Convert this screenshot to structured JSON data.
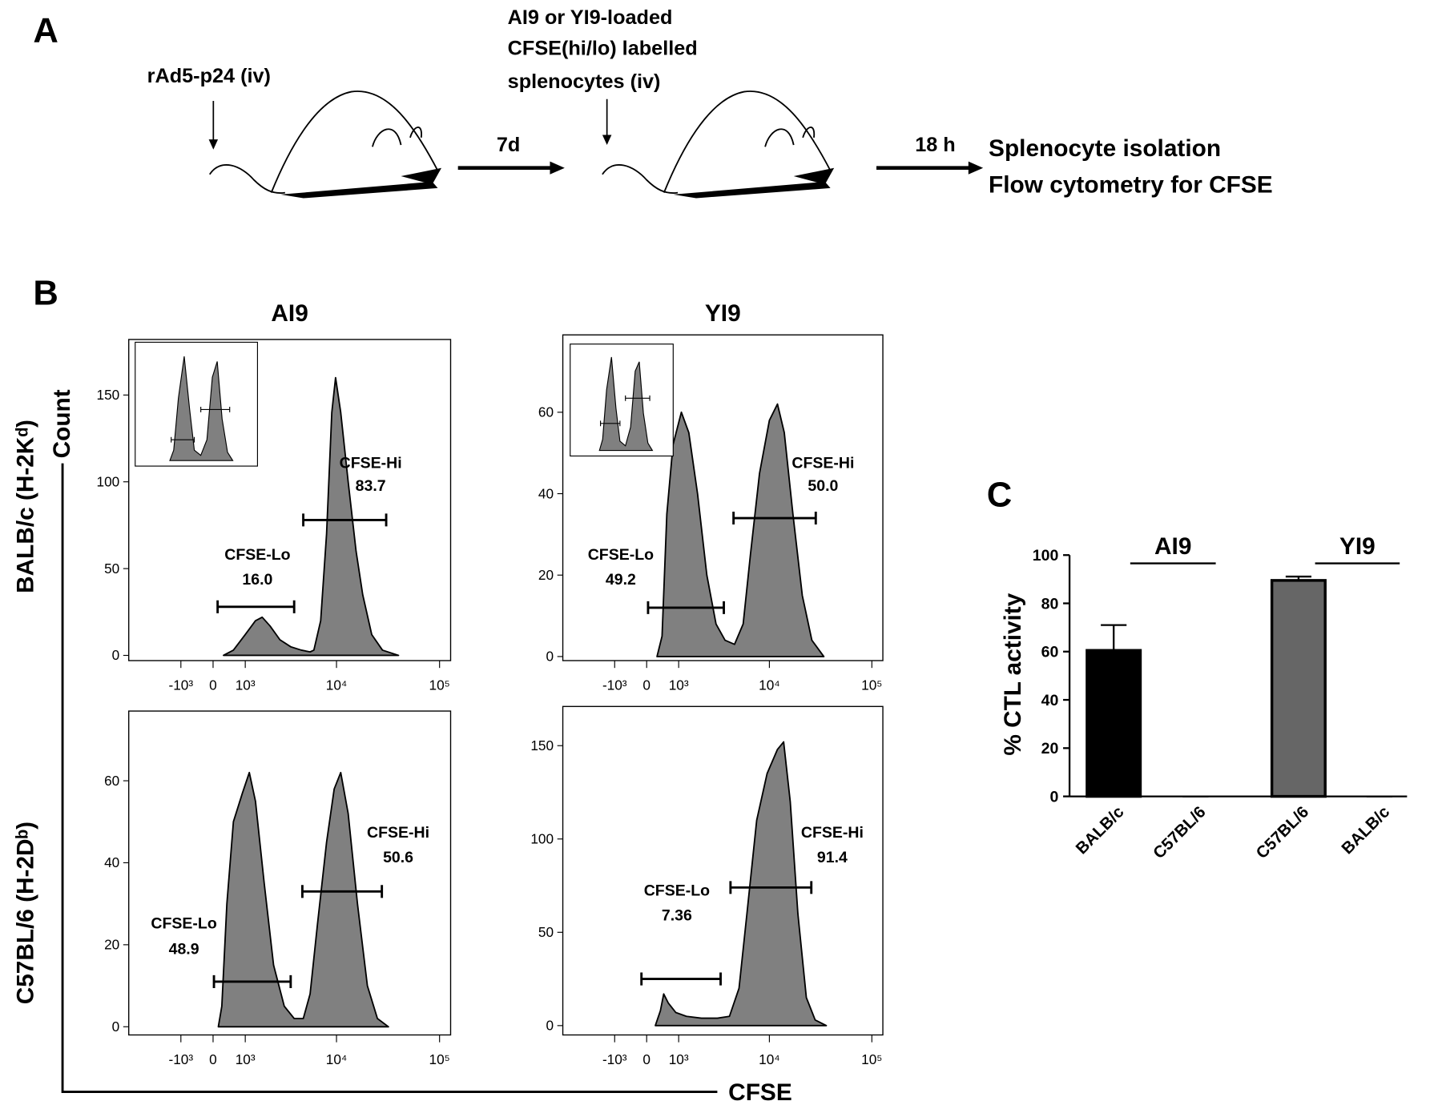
{
  "panel_a": {
    "label": "A",
    "step1": "rAd5-p24 (iv)",
    "interval1": "7d",
    "step2": [
      "AI9 or YI9-loaded",
      "CFSE(hi/lo) labelled",
      "splenocytes (iv)"
    ],
    "interval2": "18 h",
    "result": [
      "Splenocyte isolation",
      "Flow cytometry for CFSE"
    ]
  },
  "panel_b": {
    "label": "B",
    "columns": [
      "AI9",
      "YI9"
    ],
    "rows": [
      "BALB/c (H-2Kᵈ)",
      "C57BL/6 (H-2Dᵇ)"
    ],
    "y_axis_label": "Count",
    "x_axis_label": "CFSE",
    "charts": [
      {
        "type": "area",
        "color": "#808080",
        "x_scale": "biexponential",
        "xlim": [
          -4100,
          128000
        ],
        "ylim": [
          -3,
          182
        ],
        "xticks": [
          {
            "value": -1000,
            "label": "-10³"
          },
          0,
          {
            "value": 1000,
            "label": "10³"
          },
          {
            "value": 10000,
            "label": "10⁴"
          },
          {
            "value": 100000,
            "label": "10⁵"
          }
        ],
        "yticks": [
          0,
          50,
          100,
          150
        ],
        "x": [
          300,
          600,
          1000,
          1400,
          1700,
          2100,
          2700,
          3500,
          4500,
          5500,
          6000,
          7000,
          8000,
          9000,
          9800,
          11000,
          13000,
          15500,
          18000,
          22000,
          28000,
          40000
        ],
        "values": [
          0,
          3,
          12,
          20,
          22,
          17,
          9,
          5,
          3,
          2,
          3,
          20,
          70,
          140,
          160,
          140,
          100,
          60,
          35,
          12,
          3,
          0
        ],
        "gates": [
          {
            "name": "CFSE-Lo",
            "value": 16,
            "value_label": "16.0",
            "range": [
              130,
              3800
            ],
            "level": 28
          },
          {
            "name": "CFSE-Hi",
            "value": 83.7,
            "range": [
              4700,
              30400
            ],
            "level": 78
          }
        ],
        "inset": {
          "xlim": [
            -4100,
            128000
          ],
          "ylim": [
            0,
            110
          ],
          "x": [
            200,
            500,
            900,
            1500,
            2200,
            3000,
            4500,
            6500,
            9000,
            12000,
            16000,
            22000,
            30000
          ],
          "values": [
            0,
            10,
            60,
            100,
            50,
            10,
            5,
            20,
            80,
            95,
            40,
            8,
            0
          ],
          "gates": [
            {
              "range": [
                300,
                3000
              ],
              "level": 20
            },
            {
              "range": [
                4500,
                25000
              ],
              "level": 49
            }
          ]
        }
      },
      {
        "type": "area",
        "color": "#808080",
        "x_scale": "biexponential",
        "xlim": [
          -4100,
          128000
        ],
        "ylim": [
          -1,
          79
        ],
        "xticks": [
          {
            "value": -1000,
            "label": "-10³"
          },
          0,
          {
            "value": 1000,
            "label": "10³"
          },
          {
            "value": 10000,
            "label": "10⁴"
          },
          {
            "value": 100000,
            "label": "10⁵"
          }
        ],
        "yticks": [
          0,
          20,
          40,
          60
        ],
        "x": [
          300,
          450,
          600,
          800,
          1100,
          1400,
          1800,
          2300,
          2900,
          3600,
          4500,
          5500,
          6500,
          8000,
          10000,
          12000,
          14000,
          17000,
          21000,
          26000,
          34000
        ],
        "values": [
          0,
          5,
          35,
          52,
          60,
          55,
          40,
          20,
          8,
          4,
          3,
          8,
          25,
          45,
          58,
          62,
          55,
          35,
          15,
          4,
          0
        ],
        "gates": [
          {
            "name": "CFSE-Lo",
            "value": 49.2,
            "range": [
              40,
              3500
            ],
            "level": 12
          },
          {
            "name": "CFSE-Hi",
            "value": 50,
            "value_label": "50.0",
            "range": [
              4400,
              28400
            ],
            "level": 34
          }
        ],
        "inset": {
          "xlim": [
            -4100,
            128000
          ],
          "ylim": [
            0,
            110
          ],
          "x": [
            200,
            500,
            900,
            1500,
            2200,
            3000,
            4500,
            6500,
            9000,
            12000,
            16000,
            22000,
            30000
          ],
          "values": [
            0,
            12,
            65,
            100,
            45,
            10,
            5,
            25,
            85,
            95,
            40,
            8,
            0
          ],
          "gates": [
            {
              "range": [
                300,
                3000
              ],
              "level": 29
            },
            {
              "range": [
                4500,
                25000
              ],
              "level": 56
            }
          ]
        }
      },
      {
        "type": "area",
        "color": "#808080",
        "x_scale": "biexponential",
        "xlim": [
          -4100,
          128000
        ],
        "ylim": [
          -2,
          77
        ],
        "xticks": [
          {
            "value": -1000,
            "label": "-10³"
          },
          0,
          {
            "value": 1000,
            "label": "10³"
          },
          {
            "value": 10000,
            "label": "10⁴"
          },
          {
            "value": 100000,
            "label": "10⁵"
          }
        ],
        "yticks": [
          0,
          20,
          40,
          60
        ],
        "x": [
          150,
          250,
          400,
          600,
          900,
          1150,
          1400,
          1800,
          2300,
          3000,
          3800,
          4700,
          5500,
          6500,
          8000,
          9500,
          11000,
          13000,
          16000,
          20000,
          25000,
          32000
        ],
        "values": [
          0,
          5,
          30,
          50,
          57,
          62,
          55,
          35,
          15,
          5,
          2,
          2,
          8,
          25,
          45,
          58,
          62,
          52,
          30,
          10,
          2,
          0
        ],
        "gates": [
          {
            "name": "CFSE-Lo",
            "value": 48.9,
            "range": [
              25,
              3500
            ],
            "level": 11
          },
          {
            "name": "CFSE-Hi",
            "value": 50.6,
            "range": [
              4600,
              27600
            ],
            "level": 33
          }
        ]
      },
      {
        "type": "area",
        "color": "#808080",
        "x_scale": "biexponential",
        "xlim": [
          -4100,
          128000
        ],
        "ylim": [
          -5,
          171
        ],
        "xticks": [
          {
            "value": -1000,
            "label": "-10³"
          },
          0,
          {
            "value": 1000,
            "label": "10³"
          },
          {
            "value": 10000,
            "label": "10⁴"
          },
          {
            "value": 100000,
            "label": "10⁵"
          }
        ],
        "yticks": [
          0,
          50,
          100,
          150
        ],
        "x": [
          250,
          400,
          500,
          650,
          900,
          1300,
          2000,
          3000,
          4000,
          5000,
          6000,
          7500,
          9500,
          12000,
          13800,
          16000,
          19000,
          23000,
          28000,
          36000
        ],
        "values": [
          0,
          8,
          17,
          12,
          7,
          5,
          4,
          4,
          5,
          20,
          60,
          110,
          135,
          148,
          152,
          120,
          60,
          15,
          3,
          0
        ],
        "gates": [
          {
            "name": "CFSE-Lo",
            "value": 7.36,
            "range": [
              -150,
              3240
            ],
            "level": 25
          },
          {
            "name": "CFSE-Hi",
            "value": 91.4,
            "range": [
              4100,
              25700
            ],
            "level": 74
          }
        ]
      }
    ]
  },
  "panel_c": {
    "label": "C",
    "type": "bar",
    "ylabel": "% CTL activity",
    "categories": [
      "BALB/c",
      "C57BL/6",
      "C57BL/6",
      "BALB/c"
    ],
    "groups": [
      "AI9",
      "YI9"
    ],
    "values": [
      60.5,
      0,
      89.5,
      0
    ],
    "errors": [
      10.5,
      0,
      1.6,
      0
    ],
    "colors": [
      "#000000",
      "#000000",
      "#666666",
      "#666666"
    ],
    "ylim": [
      0,
      100
    ],
    "yticks": [
      0,
      20,
      40,
      60,
      80,
      100
    ]
  }
}
